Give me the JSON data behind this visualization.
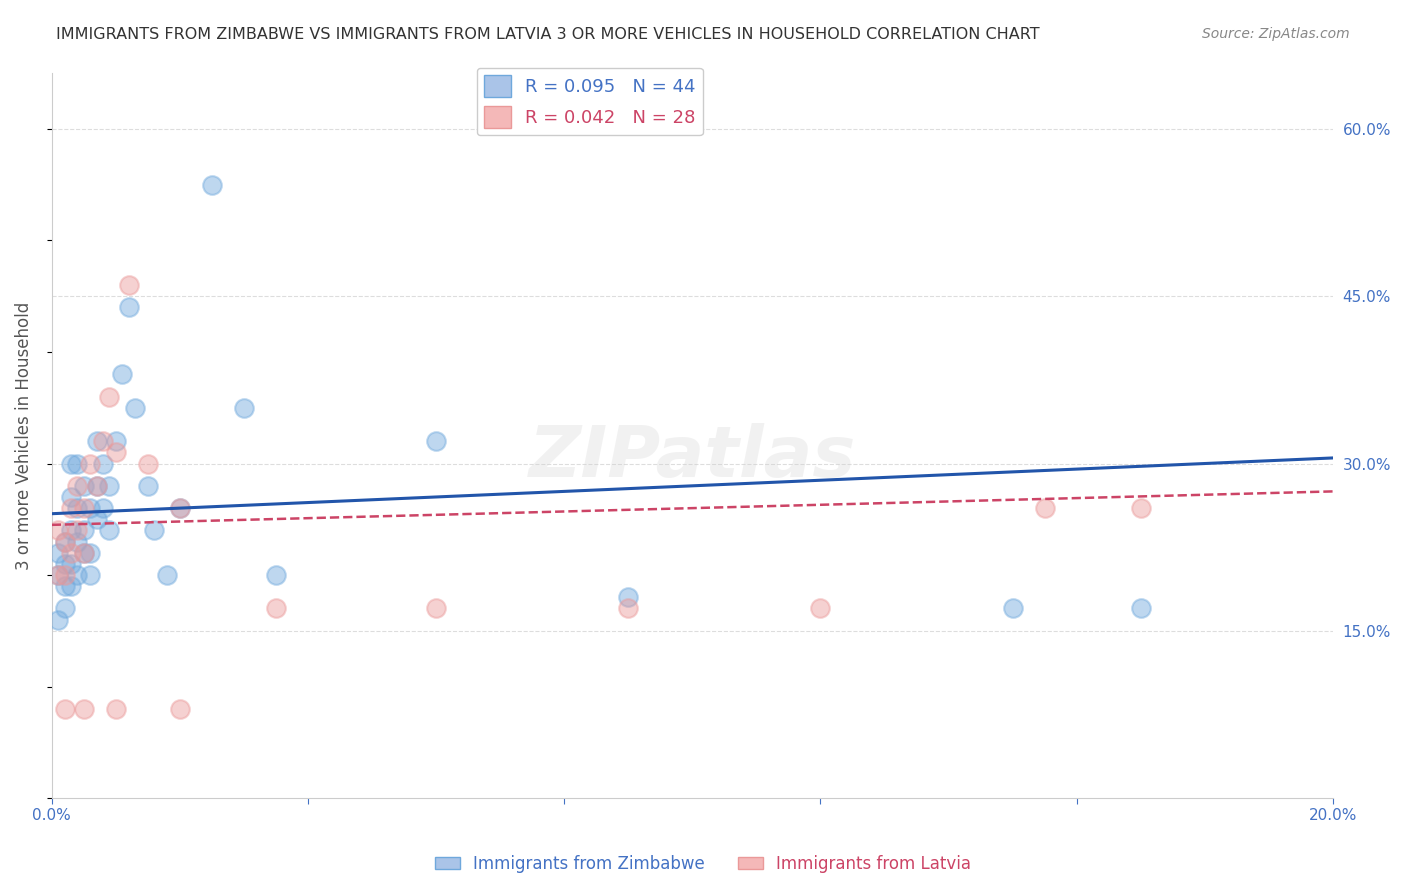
{
  "title": "IMMIGRANTS FROM ZIMBABWE VS IMMIGRANTS FROM LATVIA 3 OR MORE VEHICLES IN HOUSEHOLD CORRELATION CHART",
  "source": "Source: ZipAtlas.com",
  "ylabel": "3 or more Vehicles in Household",
  "xlim": [
    0.0,
    0.2
  ],
  "ylim": [
    0.0,
    0.65
  ],
  "zimbabwe_color": "#6fa8dc",
  "latvia_color": "#ea9999",
  "zimbabwe_R": 0.095,
  "zimbabwe_N": 44,
  "latvia_R": 0.042,
  "latvia_N": 28,
  "zimbabwe_x": [
    0.001,
    0.001,
    0.001,
    0.002,
    0.002,
    0.002,
    0.002,
    0.003,
    0.003,
    0.003,
    0.003,
    0.003,
    0.004,
    0.004,
    0.004,
    0.004,
    0.005,
    0.005,
    0.005,
    0.006,
    0.006,
    0.006,
    0.007,
    0.007,
    0.007,
    0.008,
    0.008,
    0.009,
    0.009,
    0.01,
    0.011,
    0.012,
    0.013,
    0.015,
    0.016,
    0.018,
    0.02,
    0.025,
    0.03,
    0.035,
    0.06,
    0.09,
    0.15,
    0.17
  ],
  "zimbabwe_y": [
    0.2,
    0.22,
    0.16,
    0.17,
    0.19,
    0.21,
    0.23,
    0.19,
    0.21,
    0.24,
    0.27,
    0.3,
    0.2,
    0.23,
    0.26,
    0.3,
    0.22,
    0.24,
    0.28,
    0.2,
    0.22,
    0.26,
    0.25,
    0.28,
    0.32,
    0.26,
    0.3,
    0.24,
    0.28,
    0.32,
    0.38,
    0.44,
    0.35,
    0.28,
    0.24,
    0.2,
    0.26,
    0.55,
    0.35,
    0.2,
    0.32,
    0.18,
    0.17,
    0.17
  ],
  "latvia_x": [
    0.001,
    0.001,
    0.002,
    0.002,
    0.003,
    0.003,
    0.004,
    0.004,
    0.005,
    0.005,
    0.006,
    0.007,
    0.008,
    0.009,
    0.01,
    0.012,
    0.015,
    0.02,
    0.035,
    0.06,
    0.09,
    0.12,
    0.155,
    0.17,
    0.002,
    0.005,
    0.01,
    0.02
  ],
  "latvia_y": [
    0.2,
    0.24,
    0.2,
    0.23,
    0.22,
    0.26,
    0.24,
    0.28,
    0.22,
    0.26,
    0.3,
    0.28,
    0.32,
    0.36,
    0.31,
    0.46,
    0.3,
    0.26,
    0.17,
    0.17,
    0.17,
    0.17,
    0.26,
    0.26,
    0.08,
    0.08,
    0.08,
    0.08
  ],
  "zim_trend_x0": 0.0,
  "zim_trend_y0": 0.255,
  "zim_trend_x1": 0.2,
  "zim_trend_y1": 0.305,
  "lat_trend_x0": 0.0,
  "lat_trend_y0": 0.245,
  "lat_trend_x1": 0.2,
  "lat_trend_y1": 0.275,
  "background_color": "#ffffff",
  "grid_color": "#dddddd",
  "title_color": "#333333",
  "axis_color": "#4472c4",
  "watermark": "ZIPatlas",
  "legend_blue_label": "Immigrants from Zimbabwe",
  "legend_pink_label": "Immigrants from Latvia"
}
